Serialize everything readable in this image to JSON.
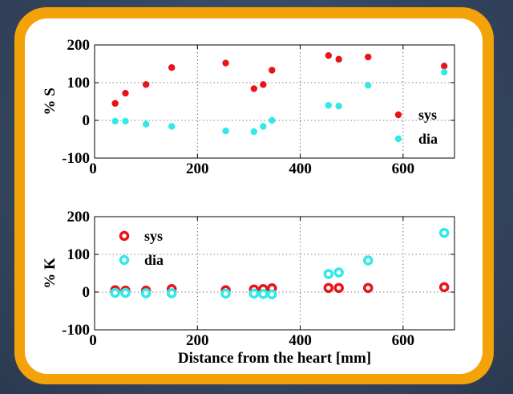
{
  "chart_data": [
    {
      "type": "scatter",
      "ylabel": "% S",
      "xlabel": "",
      "xlim": [
        0,
        700
      ],
      "ylim": [
        -100,
        200
      ],
      "xticks": [
        0,
        200,
        400,
        600
      ],
      "yticks": [
        -100,
        0,
        100,
        200
      ],
      "grid": "dotted",
      "legend": "right",
      "marker": "filled",
      "series": [
        {
          "name": "sys",
          "color": "#e8141a",
          "x": [
            40,
            60,
            100,
            150,
            255,
            310,
            328,
            345,
            455,
            475,
            532,
            680
          ],
          "y": [
            45,
            72,
            95,
            140,
            152,
            84,
            95,
            133,
            172,
            162,
            168,
            144
          ]
        },
        {
          "name": "dia",
          "color": "#33e8e8",
          "x": [
            40,
            60,
            100,
            150,
            255,
            310,
            328,
            345,
            455,
            475,
            532,
            680
          ],
          "y": [
            -2,
            -2,
            -10,
            -16,
            -28,
            -30,
            -16,
            0,
            40,
            38,
            93,
            128
          ]
        }
      ]
    },
    {
      "type": "scatter",
      "ylabel": "% K",
      "xlabel": "Distance from the heart [mm]",
      "xlim": [
        0,
        700
      ],
      "ylim": [
        -100,
        200
      ],
      "xticks": [
        0,
        200,
        400,
        600
      ],
      "yticks": [
        -100,
        0,
        100,
        200
      ],
      "grid": "dotted",
      "legend": "top-left",
      "marker": "ring",
      "series": [
        {
          "name": "sys",
          "color": "#e8141a",
          "x": [
            40,
            60,
            100,
            150,
            255,
            310,
            328,
            345,
            455,
            475,
            532,
            680
          ],
          "y": [
            5,
            4,
            4,
            8,
            5,
            7,
            8,
            10,
            11,
            11,
            11,
            13
          ]
        },
        {
          "name": "dia",
          "color": "#33e8e8",
          "x": [
            40,
            60,
            100,
            150,
            255,
            310,
            328,
            345,
            455,
            475,
            532,
            680
          ],
          "y": [
            -2,
            -2,
            -3,
            -3,
            -4,
            -4,
            -5,
            -6,
            48,
            52,
            84,
            157
          ]
        }
      ]
    }
  ]
}
